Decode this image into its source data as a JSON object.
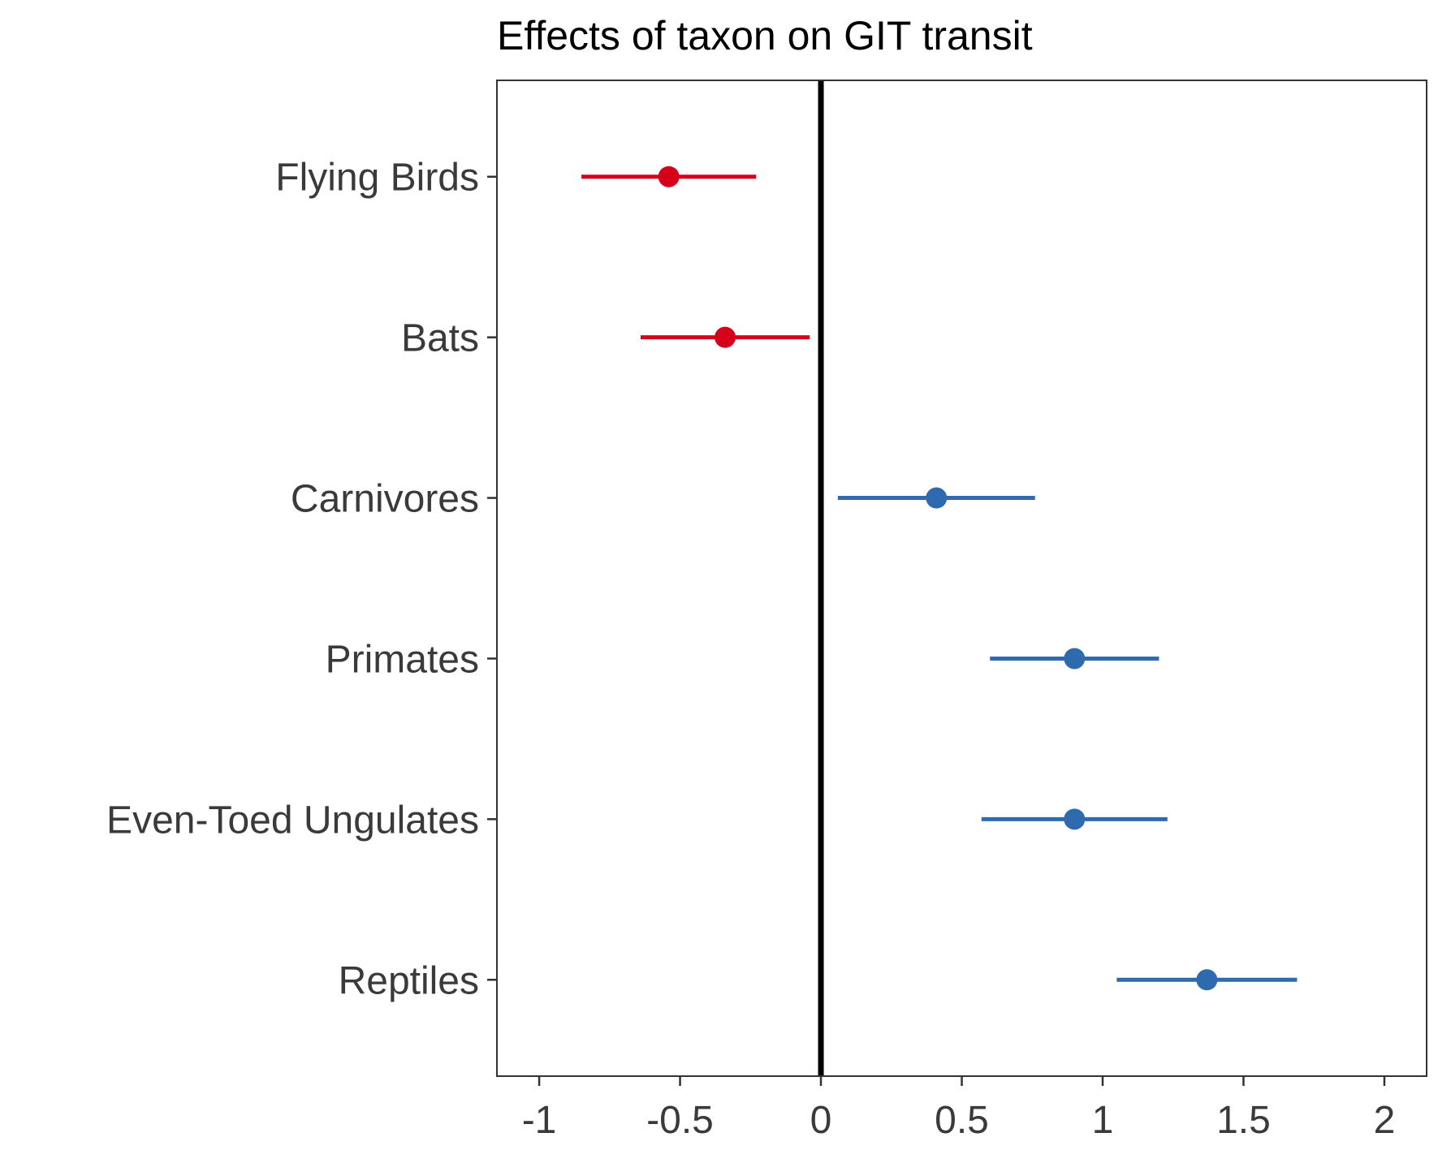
{
  "chart_data": {
    "type": "forest",
    "title": "Effects of taxon on GIT transit",
    "xlabel": "",
    "ylabel": "",
    "xlim": [
      -1.15,
      2.15
    ],
    "xticks": [
      -1,
      -0.5,
      0,
      0.5,
      1,
      1.5,
      2
    ],
    "xtick_labels": [
      "-1",
      "-0.5",
      "0",
      "0.5",
      "1",
      "1.5",
      "2"
    ],
    "reference_line": 0,
    "grid": false,
    "colors": {
      "negative": "#d7001b",
      "positive": "#2e6aad",
      "reference": "#000000",
      "axis": "#333333"
    },
    "series": [
      {
        "category": "Flying Birds",
        "estimate": -0.54,
        "lower": -0.85,
        "upper": -0.23
      },
      {
        "category": "Bats",
        "estimate": -0.34,
        "lower": -0.64,
        "upper": -0.04
      },
      {
        "category": "Carnivores",
        "estimate": 0.41,
        "lower": 0.06,
        "upper": 0.76
      },
      {
        "category": "Primates",
        "estimate": 0.9,
        "lower": 0.6,
        "upper": 1.2
      },
      {
        "category": "Even-Toed Ungulates",
        "estimate": 0.9,
        "lower": 0.57,
        "upper": 1.23
      },
      {
        "category": "Reptiles",
        "estimate": 1.37,
        "lower": 1.05,
        "upper": 1.69
      }
    ]
  }
}
